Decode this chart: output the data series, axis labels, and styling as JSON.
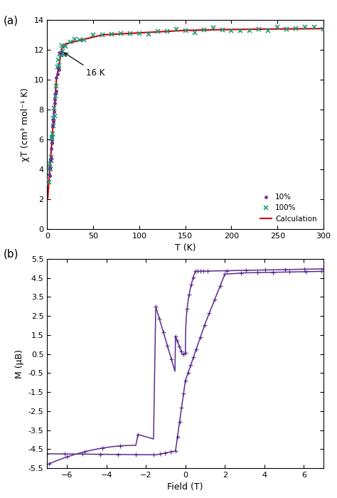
{
  "panel_a": {
    "title_label": "(a)",
    "xlabel": "T (K)",
    "ylabel": "χT (cm³ mol⁻¹ K)",
    "xlim": [
      0,
      300
    ],
    "ylim": [
      0,
      14
    ],
    "xticks": [
      0,
      50,
      100,
      150,
      200,
      250,
      300
    ],
    "yticks": [
      0,
      2,
      4,
      6,
      8,
      10,
      12,
      14
    ],
    "annotation": "16 K",
    "color_10pct": "#6B3393",
    "color_100pct": "#1A9A7A",
    "color_calc": "#CC0000",
    "legend_labels": [
      "10%",
      "100%",
      "Calculation"
    ]
  },
  "panel_b": {
    "title_label": "(b)",
    "xlabel": "Field (T)",
    "ylabel": "M (μB)",
    "xlim": [
      -7,
      7
    ],
    "ylim": [
      -5.5,
      5.5
    ],
    "xticks": [
      -6,
      -4,
      -2,
      0,
      2,
      4,
      6
    ],
    "yticks": [
      -5.5,
      -4.5,
      -3.5,
      -2.5,
      -1.5,
      -0.5,
      0.5,
      1.5,
      2.5,
      3.5,
      4.5,
      5.5
    ],
    "ytick_labels": [
      "-5.5",
      "-4.5",
      "-3.5",
      "-2.5",
      "-1.5",
      "-0.5",
      "0.5",
      "1.5",
      "2.5",
      "3.5",
      "4.5",
      "5.5"
    ],
    "color_hysteresis": "#5B2D8E"
  }
}
